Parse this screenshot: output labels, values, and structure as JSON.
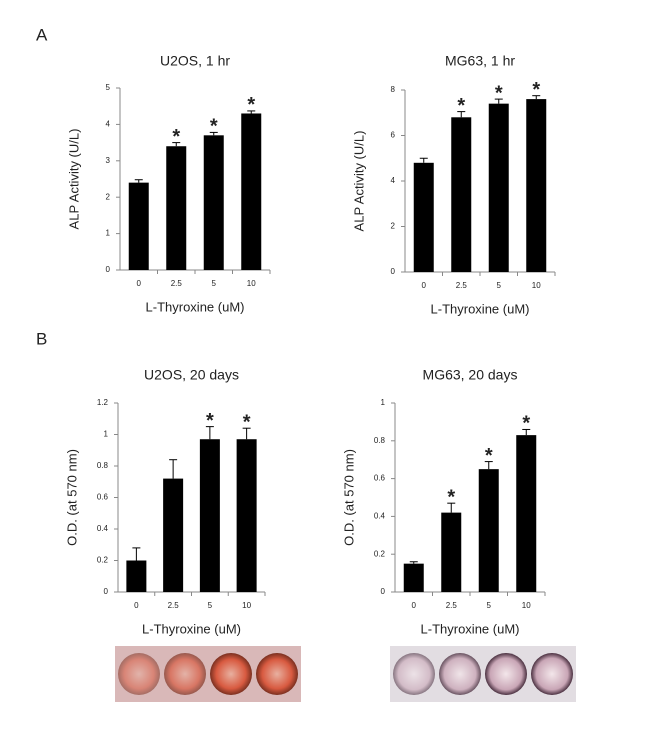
{
  "panel_labels": [
    "A",
    "B"
  ],
  "chart_data": [
    {
      "type": "bar",
      "title": "U2OS, 1 hr",
      "xlabel": "L-Thyroxine (uM)",
      "ylabel": "ALP Activity (U/L)",
      "categories": [
        "0",
        "2.5",
        "5",
        "10"
      ],
      "values": [
        2.4,
        3.4,
        3.7,
        4.3
      ],
      "errors": [
        0.08,
        0.1,
        0.08,
        0.07
      ],
      "significance": [
        null,
        "*",
        "*",
        "*"
      ],
      "color": "#000000",
      "ylim": [
        0,
        5
      ],
      "yticks": [
        0,
        1,
        2,
        3,
        4,
        5
      ]
    },
    {
      "type": "bar",
      "title": "MG63, 1 hr",
      "xlabel": "L-Thyroxine (uM)",
      "ylabel": "ALP Activity (U/L)",
      "categories": [
        "0",
        "2.5",
        "5",
        "10"
      ],
      "values": [
        4.8,
        6.8,
        7.4,
        7.6
      ],
      "errors": [
        0.2,
        0.25,
        0.2,
        0.15
      ],
      "significance": [
        null,
        "*",
        "*",
        "*"
      ],
      "color": "#000000",
      "ylim": [
        0,
        8
      ],
      "yticks": [
        0,
        2,
        4,
        6,
        8
      ]
    },
    {
      "type": "bar",
      "title": "U2OS, 20 days",
      "xlabel": "L-Thyroxine (uM)",
      "ylabel": "O.D. (at 570 nm)",
      "categories": [
        "0",
        "2.5",
        "5",
        "10"
      ],
      "values": [
        0.2,
        0.72,
        0.97,
        0.97
      ],
      "errors": [
        0.08,
        0.12,
        0.08,
        0.07
      ],
      "significance": [
        null,
        null,
        "*",
        "*"
      ],
      "color": "#000000",
      "ylim": [
        0,
        1.2
      ],
      "yticks": [
        0,
        0.2,
        0.4,
        0.6,
        0.8,
        1,
        1.2
      ]
    },
    {
      "type": "bar",
      "title": "MG63, 20 days",
      "xlabel": "L-Thyroxine (uM)",
      "ylabel": "O.D. (at 570 nm)",
      "categories": [
        "0",
        "2.5",
        "5",
        "10"
      ],
      "values": [
        0.15,
        0.42,
        0.65,
        0.83
      ],
      "errors": [
        0.01,
        0.05,
        0.04,
        0.03
      ],
      "significance": [
        null,
        "*",
        "*",
        "*"
      ],
      "color": "#000000",
      "ylim": [
        0,
        1
      ],
      "yticks": [
        0,
        0.2,
        0.4,
        0.6,
        0.8,
        1
      ]
    }
  ]
}
